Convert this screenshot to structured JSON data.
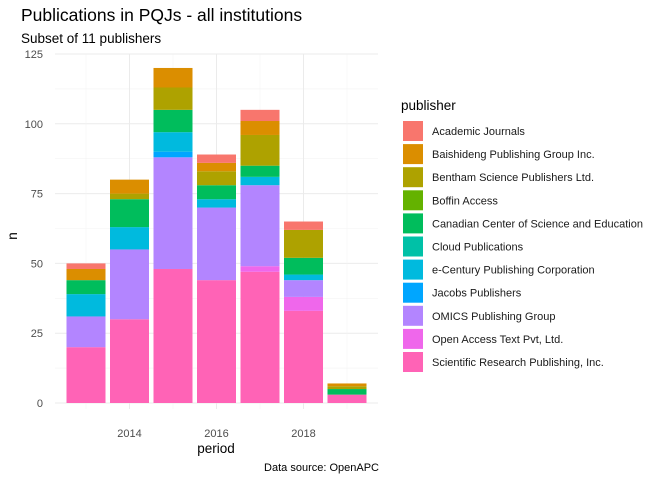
{
  "chart_data": {
    "type": "bar",
    "stacked": true,
    "title": "Publications in PQJs - all institutions",
    "subtitle": "Subset of 11 publishers",
    "xlabel": "period",
    "ylabel": "n",
    "caption": "Data source: OpenAPC",
    "legend_title": "publisher",
    "legend_position": "right",
    "grid": true,
    "categories": [
      2013,
      2014,
      2015,
      2016,
      2017,
      2018,
      2019
    ],
    "xlim": [
      2012.45,
      2019.55
    ],
    "ylim": [
      0,
      125
    ],
    "x_ticks": [
      "2014",
      "2016",
      "2018"
    ],
    "x_tick_values": [
      2014,
      2016,
      2018
    ],
    "y_ticks": [
      "0",
      "25",
      "50",
      "75",
      "100",
      "125"
    ],
    "y_tick_values": [
      0,
      25,
      50,
      75,
      100,
      125
    ],
    "series": [
      {
        "name": "Academic Journals",
        "color": "#F8766D",
        "values": [
          2,
          0,
          0,
          3,
          4,
          3,
          0
        ]
      },
      {
        "name": "Baishideng Publishing Group Inc.",
        "color": "#DB8E00",
        "values": [
          4,
          5,
          7,
          3,
          5,
          0,
          1
        ]
      },
      {
        "name": "Bentham Science Publishers Ltd.",
        "color": "#AEA200",
        "values": [
          0,
          2,
          8,
          5,
          11,
          10,
          1
        ]
      },
      {
        "name": "Boffin Access",
        "color": "#64B200",
        "values": [
          0,
          0,
          0,
          0,
          0,
          0,
          0
        ]
      },
      {
        "name": "Canadian Center of Science and Education",
        "color": "#00BD5C",
        "values": [
          5,
          10,
          8,
          5,
          4,
          6,
          2
        ]
      },
      {
        "name": "Cloud Publications",
        "color": "#00C1A7",
        "values": [
          0,
          0,
          0,
          0,
          0,
          0,
          0
        ]
      },
      {
        "name": "e-Century Publishing Corporation",
        "color": "#00BADE",
        "values": [
          8,
          8,
          7,
          3,
          3,
          2,
          0
        ]
      },
      {
        "name": "Jacobs Publishers",
        "color": "#00A6FF",
        "values": [
          0,
          0,
          2,
          0,
          0,
          0,
          0
        ]
      },
      {
        "name": "OMICS Publishing Group",
        "color": "#B385FF",
        "values": [
          11,
          25,
          40,
          26,
          29,
          6,
          0
        ]
      },
      {
        "name": "Open Access Text Pvt, Ltd.",
        "color": "#EF67EB",
        "values": [
          0,
          0,
          0,
          0,
          2,
          5,
          0
        ]
      },
      {
        "name": "Scientific Research Publishing, Inc.",
        "color": "#FF63B6",
        "values": [
          20,
          30,
          48,
          44,
          47,
          33,
          3
        ]
      }
    ]
  }
}
